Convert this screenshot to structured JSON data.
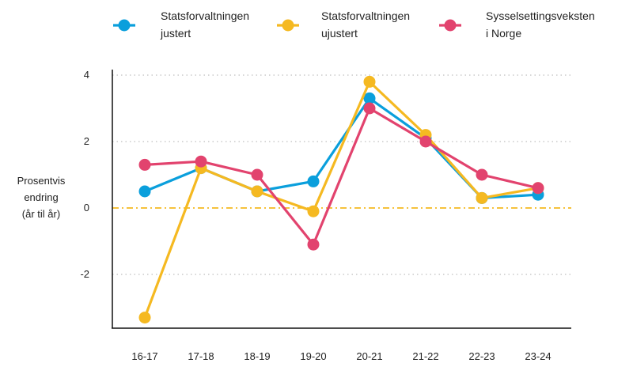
{
  "chart_data": {
    "type": "line",
    "categories": [
      "16-17",
      "17-18",
      "18-19",
      "19-20",
      "20-21",
      "21-22",
      "22-23",
      "23-24"
    ],
    "ylabel": [
      "Prosentvis",
      "endring",
      "(år til år)"
    ],
    "ylim": [
      -3.6,
      4.2
    ],
    "yticks": [
      -2,
      0,
      2,
      4
    ],
    "ytick_labels": [
      "-2",
      "0",
      "2",
      "4"
    ],
    "grid": "horizontal dotted",
    "zero_line": true,
    "legend_position": "top",
    "series": [
      {
        "name": [
          "Statsforvaltningen",
          "justert"
        ],
        "color": "#0a9fdc",
        "values": [
          0.5,
          1.2,
          0.5,
          0.8,
          3.3,
          2.1,
          0.3,
          0.4
        ]
      },
      {
        "name": [
          "Statsforvaltningen",
          "ujustert"
        ],
        "color": "#f5b921",
        "values": [
          -3.3,
          1.2,
          0.5,
          -0.1,
          3.8,
          2.2,
          0.3,
          0.6
        ]
      },
      {
        "name": [
          "Sysselsettingsveksten",
          "i Norge"
        ],
        "color": "#e2436e",
        "values": [
          1.3,
          1.4,
          1.0,
          -1.1,
          3.0,
          2.0,
          1.0,
          0.6
        ]
      }
    ]
  }
}
